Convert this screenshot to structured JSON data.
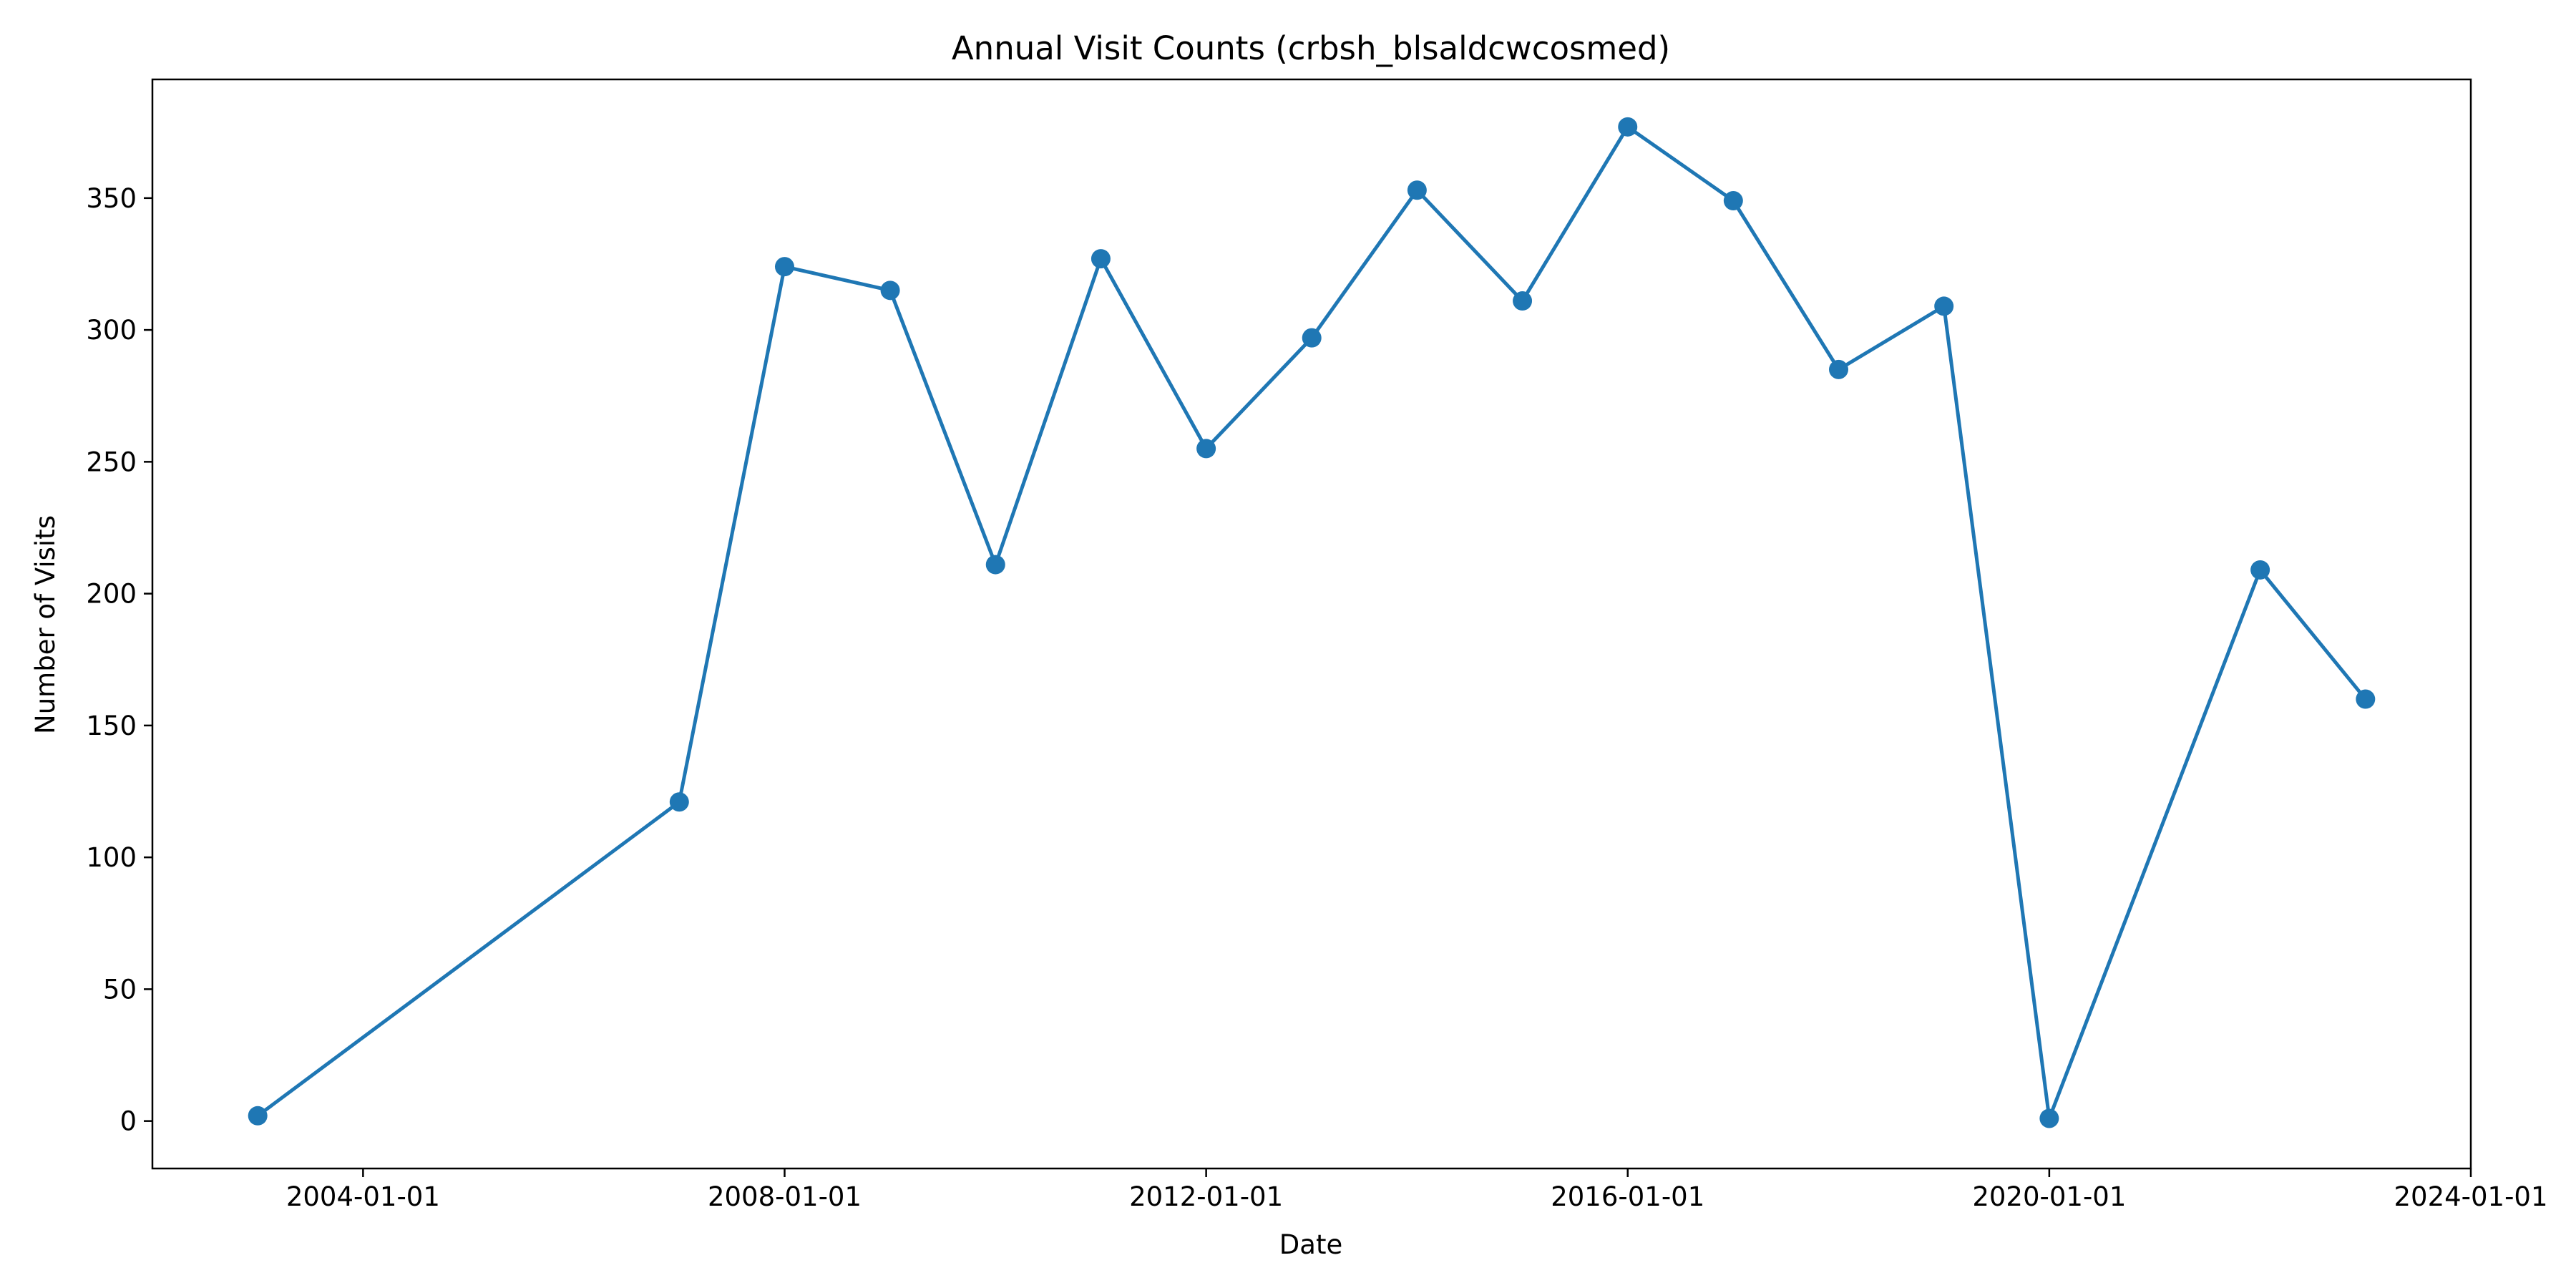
{
  "chart_data": {
    "type": "line",
    "title": "Annual Visit Counts (crbsh_blsaldcwcosmed)",
    "xlabel": "Date",
    "ylabel": "Number of Visits",
    "x_tick_labels": [
      "2004-01-01",
      "2008-01-01",
      "2012-01-01",
      "2016-01-01",
      "2020-01-01",
      "2024-01-01"
    ],
    "y_tick_labels": [
      "0",
      "50",
      "100",
      "150",
      "200",
      "250",
      "300",
      "350"
    ],
    "y_ticks": [
      0,
      50,
      100,
      150,
      200,
      250,
      300,
      350
    ],
    "xlim": [
      "2002-01-01",
      "2024-01-01"
    ],
    "ylim": [
      -18,
      395
    ],
    "grid": false,
    "legend": "none",
    "color": "#1f77b4",
    "marker": "circle",
    "series": [
      {
        "x": [
          "2003-01-01",
          "2007-01-01",
          "2008-01-01",
          "2009-01-01",
          "2010-01-01",
          "2011-01-01",
          "2012-01-01",
          "2013-01-01",
          "2014-01-01",
          "2015-01-01",
          "2016-01-01",
          "2017-01-01",
          "2018-01-01",
          "2019-01-01",
          "2020-01-01",
          "2022-01-01",
          "2023-01-01"
        ],
        "y": [
          2,
          121,
          324,
          315,
          211,
          327,
          255,
          297,
          353,
          311,
          377,
          349,
          285,
          309,
          1,
          209,
          160
        ]
      }
    ]
  }
}
